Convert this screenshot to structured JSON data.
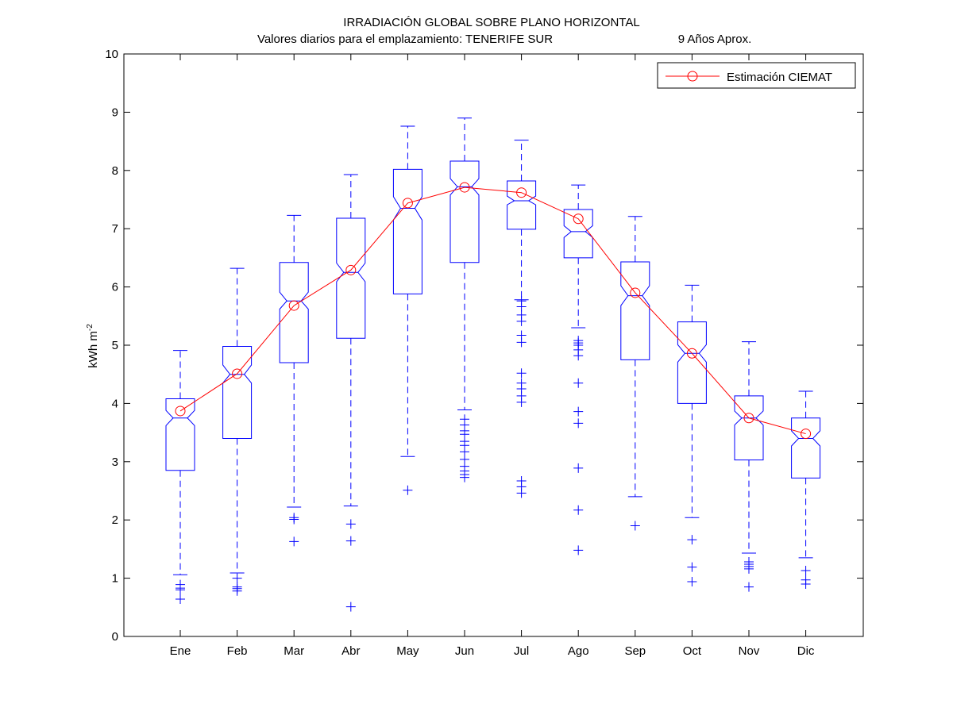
{
  "chart_data": {
    "type": "boxplot",
    "title": "IRRADIACIÓN GLOBAL SOBRE PLANO HORIZONTAL",
    "subtitle": "Valores diarios para el emplazamiento:  TENERIFE SUR",
    "subtitle_right": "9 Años Aprox.",
    "xlabel": "",
    "ylabel_main": "kWh m",
    "ylabel_sup": "-2",
    "ylim": [
      0,
      10
    ],
    "yticks": [
      0,
      1,
      2,
      3,
      4,
      5,
      6,
      7,
      8,
      9,
      10
    ],
    "grid": false,
    "legend_position": "top-right",
    "categories": [
      "Ene",
      "Feb",
      "Mar",
      "Abr",
      "May",
      "Jun",
      "Jul",
      "Ago",
      "Sep",
      "Oct",
      "Nov",
      "Dic"
    ],
    "boxes": [
      {
        "whisker_low": 1.06,
        "q1": 2.85,
        "median": 3.75,
        "q3": 4.08,
        "whisker_high": 4.91,
        "notch_low": 3.62,
        "notch_high": 3.88,
        "outliers": [
          0.64,
          0.8,
          0.83,
          0.89
        ]
      },
      {
        "whisker_low": 1.09,
        "q1": 3.4,
        "median": 4.5,
        "q3": 4.98,
        "whisker_high": 6.32,
        "notch_low": 4.35,
        "notch_high": 4.66,
        "outliers": [
          0.78,
          0.82,
          0.85,
          1.0
        ]
      },
      {
        "whisker_low": 2.22,
        "q1": 4.7,
        "median": 5.76,
        "q3": 6.42,
        "whisker_high": 7.23,
        "notch_low": 5.62,
        "notch_high": 5.91,
        "outliers": [
          1.63,
          2.01,
          2.04
        ]
      },
      {
        "whisker_low": 2.24,
        "q1": 5.12,
        "median": 6.25,
        "q3": 7.18,
        "whisker_high": 7.93,
        "notch_low": 6.09,
        "notch_high": 6.41,
        "outliers": [
          0.51,
          1.64,
          1.93
        ]
      },
      {
        "whisker_low": 3.09,
        "q1": 5.88,
        "median": 7.35,
        "q3": 8.02,
        "whisker_high": 8.76,
        "notch_low": 7.15,
        "notch_high": 7.55,
        "outliers": [
          2.51
        ]
      },
      {
        "whisker_low": 3.89,
        "q1": 6.42,
        "median": 7.72,
        "q3": 8.16,
        "whisker_high": 8.9,
        "notch_low": 7.58,
        "notch_high": 7.86,
        "outliers": [
          2.73,
          2.78,
          2.84,
          2.92,
          3.04,
          3.17,
          3.28,
          3.35,
          3.47,
          3.53,
          3.63,
          3.73
        ]
      },
      {
        "whisker_low": 5.78,
        "q1": 6.99,
        "median": 7.48,
        "q3": 7.82,
        "whisker_high": 8.52,
        "notch_low": 7.41,
        "notch_high": 7.56,
        "outliers": [
          2.46,
          2.57,
          2.67,
          4.02,
          4.13,
          4.25,
          4.35,
          4.52,
          5.05,
          5.17,
          5.41,
          5.52,
          5.66,
          5.76
        ]
      },
      {
        "whisker_low": 5.3,
        "q1": 6.5,
        "median": 6.95,
        "q3": 7.33,
        "whisker_high": 7.75,
        "notch_low": 6.85,
        "notch_high": 7.05,
        "outliers": [
          1.48,
          2.17,
          2.89,
          3.66,
          3.86,
          4.35,
          4.82,
          4.92,
          5.0,
          5.04,
          5.08
        ]
      },
      {
        "whisker_low": 2.4,
        "q1": 4.75,
        "median": 5.85,
        "q3": 6.43,
        "whisker_high": 7.21,
        "notch_low": 5.68,
        "notch_high": 6.02,
        "outliers": [
          1.9
        ]
      },
      {
        "whisker_low": 2.04,
        "q1": 4.0,
        "median": 4.86,
        "q3": 5.4,
        "whisker_high": 6.03,
        "notch_low": 4.71,
        "notch_high": 5.01,
        "outliers": [
          0.94,
          1.19,
          1.66
        ]
      },
      {
        "whisker_low": 1.43,
        "q1": 3.03,
        "median": 3.75,
        "q3": 4.13,
        "whisker_high": 5.06,
        "notch_low": 3.63,
        "notch_high": 3.87,
        "outliers": [
          0.85,
          1.16,
          1.2,
          1.24,
          1.28
        ]
      },
      {
        "whisker_low": 1.35,
        "q1": 2.72,
        "median": 3.4,
        "q3": 3.75,
        "whisker_high": 4.21,
        "notch_low": 3.27,
        "notch_high": 3.53,
        "outliers": [
          0.9,
          0.97,
          1.13
        ]
      }
    ],
    "series": [
      {
        "name": "Estimación CIEMAT",
        "color": "#ff0000",
        "marker": "circle",
        "values": [
          3.87,
          4.51,
          5.68,
          6.29,
          7.44,
          7.71,
          7.62,
          7.17,
          5.9,
          4.86,
          3.75,
          3.48
        ]
      }
    ],
    "colors": {
      "box": "#0000ff",
      "line": "#ff0000",
      "axes": "#000000",
      "background": "#ffffff"
    }
  }
}
